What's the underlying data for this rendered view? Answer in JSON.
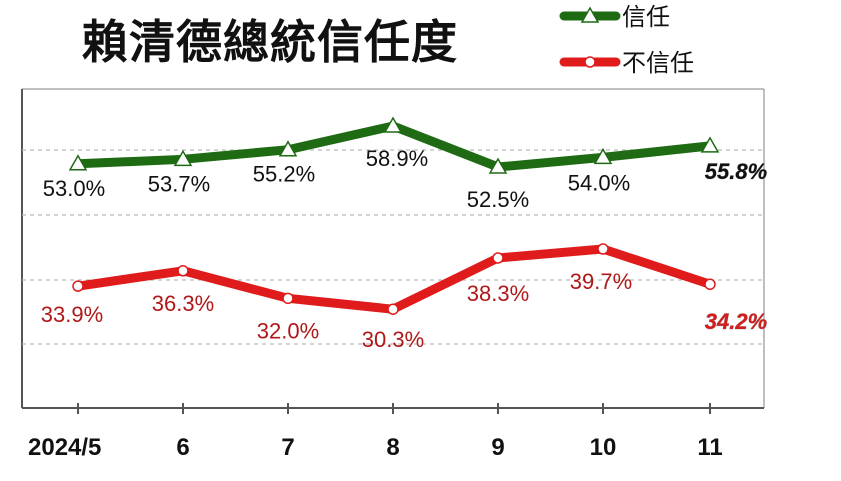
{
  "title": "賴清德總統信任度",
  "legend": [
    {
      "name": "信任",
      "color": "#1e6b14",
      "marker": "triangle"
    },
    {
      "name": "不信任",
      "color": "#e01b1b",
      "marker": "circle"
    }
  ],
  "chart_data": {
    "type": "line",
    "title": "賴清德總統信任度",
    "categories": [
      "2024/5",
      "6",
      "7",
      "8",
      "9",
      "10",
      "11"
    ],
    "series": [
      {
        "name": "信任",
        "values": [
          53.0,
          53.7,
          55.2,
          58.9,
          52.5,
          54.0,
          55.8
        ],
        "color": "#1e6b14",
        "labels": [
          "53.0%",
          "53.7%",
          "55.2%",
          "58.9%",
          "52.5%",
          "54.0%",
          "55.8%"
        ]
      },
      {
        "name": "不信任",
        "values": [
          33.9,
          36.3,
          32.0,
          30.3,
          38.3,
          39.7,
          34.2
        ],
        "color": "#e01b1b",
        "labels": [
          "33.9%",
          "36.3%",
          "32.0%",
          "30.3%",
          "38.3%",
          "39.7%",
          "34.2%"
        ]
      }
    ],
    "grid": true,
    "legend_position": "top-right"
  }
}
